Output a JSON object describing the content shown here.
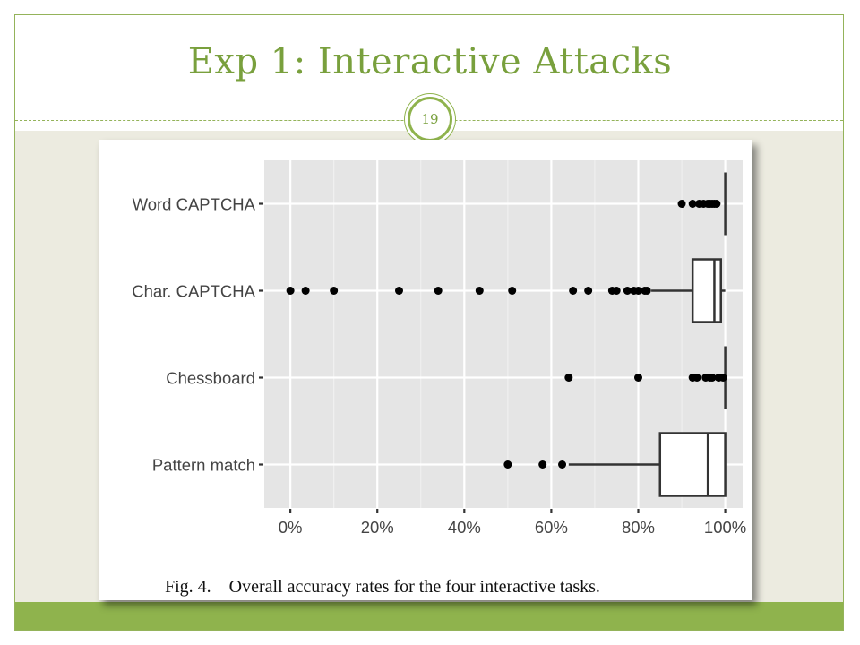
{
  "slide": {
    "title": "Exp 1: Interactive Attacks",
    "number": "19",
    "caption": "Fig. 4.    Overall accuracy rates for the four interactive tasks."
  },
  "colors": {
    "accent": "#8fb34d",
    "title": "#79a03d",
    "panel": "#e5e5e5",
    "band": "#ecebe0"
  },
  "chart_data": {
    "type": "boxplot",
    "orientation": "horizontal",
    "xlim": [
      -6,
      104
    ],
    "x_ticks": [
      0,
      20,
      40,
      60,
      80,
      100
    ],
    "x_tick_labels": [
      "0%",
      "20%",
      "40%",
      "60%",
      "80%",
      "100%"
    ],
    "grid": true,
    "categories": [
      {
        "label": "Word CAPTCHA",
        "whisker_low": 100,
        "q1": 100,
        "median": 100,
        "q3": 100,
        "whisker_high": 100,
        "outliers": [
          90,
          92.5,
          94,
          95,
          96,
          96.5,
          97,
          97.5,
          98
        ]
      },
      {
        "label": "Char. CAPTCHA",
        "whisker_low": 83,
        "q1": 92.5,
        "median": 97.5,
        "q3": 99,
        "whisker_high": 100,
        "outliers": [
          0,
          3.5,
          10,
          25,
          34,
          43.5,
          51,
          65,
          68.5,
          74,
          75,
          77.5,
          79,
          80,
          81.5,
          82
        ]
      },
      {
        "label": "Chessboard",
        "whisker_low": 100,
        "q1": 100,
        "median": 100,
        "q3": 100,
        "whisker_high": 100,
        "outliers": [
          64,
          80,
          92.5,
          93.5,
          95.5,
          96.5,
          97,
          98.5,
          99.5
        ]
      },
      {
        "label": "Pattern match",
        "whisker_low": 64,
        "q1": 85,
        "median": 96,
        "q3": 100,
        "whisker_high": 100,
        "outliers": [
          50,
          58,
          62.5
        ]
      }
    ]
  }
}
